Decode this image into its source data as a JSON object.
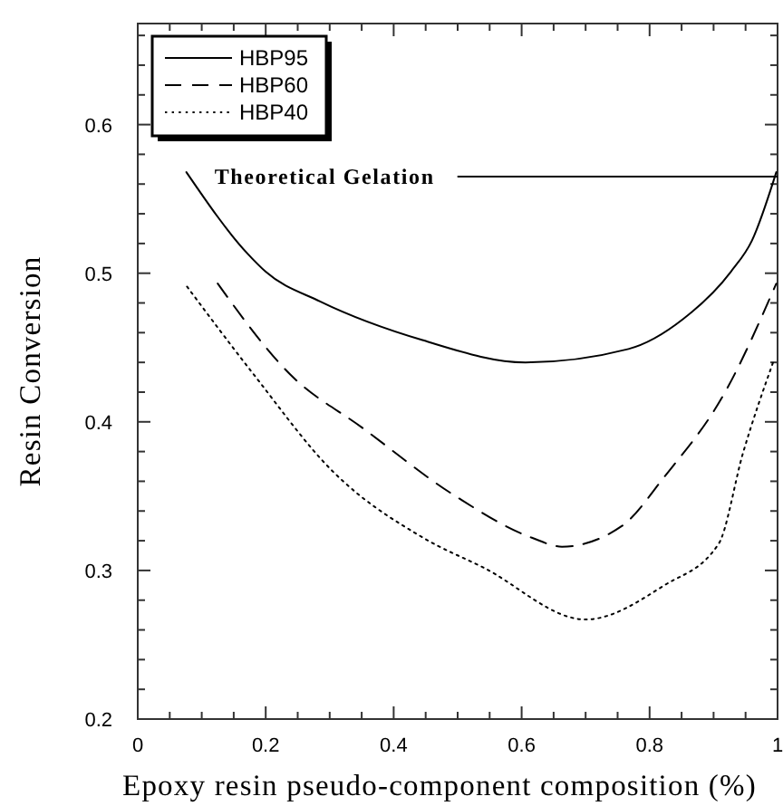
{
  "chart_data": {
    "type": "line",
    "xlabel": "Epoxy resin pseudo-component composition (%)",
    "ylabel": "Resin Conversion",
    "xlim": [
      0,
      1
    ],
    "ylim": [
      0.2,
      0.668
    ],
    "xticks": [
      0,
      {
        "value": 0.05,
        "label": null
      },
      {
        "value": 0.1,
        "label": null
      },
      {
        "value": 0.15,
        "label": null
      },
      0.2,
      {
        "value": 0.25,
        "label": null
      },
      {
        "value": 0.3,
        "label": null
      },
      {
        "value": 0.35,
        "label": null
      },
      0.4,
      {
        "value": 0.45,
        "label": null
      },
      {
        "value": 0.5,
        "label": null
      },
      {
        "value": 0.55,
        "label": null
      },
      0.6,
      {
        "value": 0.65,
        "label": null
      },
      {
        "value": 0.7,
        "label": null
      },
      {
        "value": 0.75,
        "label": null
      },
      0.8,
      {
        "value": 0.85,
        "label": null
      },
      {
        "value": 0.9,
        "label": null
      },
      {
        "value": 0.95,
        "label": null
      },
      1
    ],
    "yticks": [
      0.2,
      {
        "value": 0.22,
        "label": null
      },
      {
        "value": 0.24,
        "label": null
      },
      {
        "value": 0.26,
        "label": null
      },
      {
        "value": 0.28,
        "label": null
      },
      0.3,
      {
        "value": 0.32,
        "label": null
      },
      {
        "value": 0.34,
        "label": null
      },
      {
        "value": 0.36,
        "label": null
      },
      {
        "value": 0.38,
        "label": null
      },
      0.4,
      {
        "value": 0.42,
        "label": null
      },
      {
        "value": 0.44,
        "label": null
      },
      {
        "value": 0.46,
        "label": null
      },
      {
        "value": 0.48,
        "label": null
      },
      0.5,
      {
        "value": 0.52,
        "label": null
      },
      {
        "value": 0.54,
        "label": null
      },
      {
        "value": 0.56,
        "label": null
      },
      {
        "value": 0.58,
        "label": null
      },
      0.6,
      {
        "value": 0.62,
        "label": null
      },
      {
        "value": 0.64,
        "label": null
      },
      {
        "value": 0.66,
        "label": null
      }
    ],
    "grid": false,
    "legend": "top left",
    "marker": "none",
    "series": [
      {
        "name": "HBP95",
        "color": "#000000",
        "line_style": "solid",
        "x": [
          0.076,
          0.172,
          0.2,
          0.285,
          0.445,
          0.606,
          0.767,
          0.852,
          0.927,
          0.96,
          0.998
        ],
        "values": [
          0.568,
          0.513,
          0.501,
          0.481,
          0.455,
          0.44,
          0.449,
          0.469,
          0.501,
          0.522,
          0.568
        ]
      },
      {
        "name": "HBP60",
        "color": "#000000",
        "line_style": "dashed",
        "x": [
          0.125,
          0.238,
          0.351,
          0.493,
          0.616,
          0.663,
          0.757,
          0.823,
          0.918,
          0.998
        ],
        "values": [
          0.493,
          0.432,
          0.396,
          0.351,
          0.322,
          0.316,
          0.33,
          0.363,
          0.42,
          0.493
        ]
      },
      {
        "name": "HBP40",
        "color": "#000000",
        "line_style": "dotted",
        "x": [
          0.077,
          0.181,
          0.304,
          0.446,
          0.54,
          0.7,
          0.823,
          0.908,
          0.946,
          0.993
        ],
        "values": [
          0.491,
          0.432,
          0.367,
          0.322,
          0.302,
          0.267,
          0.29,
          0.318,
          0.379,
          0.44
        ]
      }
    ],
    "ref_lines": [
      {
        "axis": "y",
        "value": 0.565,
        "label": "Theoretical Gelation",
        "color": "#000000"
      }
    ]
  }
}
